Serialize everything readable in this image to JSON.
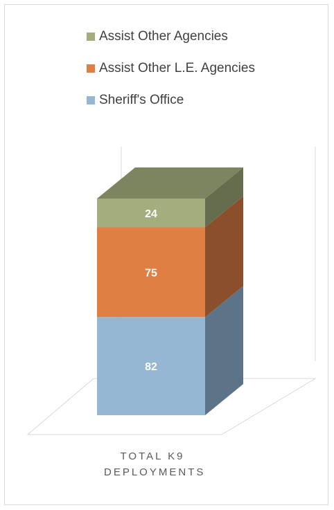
{
  "chart_data": {
    "type": "bar",
    "stacked": true,
    "three_d": true,
    "categories": [
      "Total K9 Deployments"
    ],
    "series": [
      {
        "name": "Sheriff's Office",
        "values": [
          82
        ],
        "color": "#95b7d4",
        "side_color": "#5d7387",
        "top_color": "#7b96ad"
      },
      {
        "name": "Assist Other L.E. Agencies",
        "values": [
          75
        ],
        "color": "#e07f44",
        "side_color": "#8c4f2b",
        "top_color": "#b86836"
      },
      {
        "name": "Assist Other Agencies",
        "values": [
          24
        ],
        "color": "#a3ad7d",
        "side_color": "#666c4e",
        "top_color": "#7d8460"
      }
    ],
    "legend_position": "top",
    "grid": false
  },
  "legend": {
    "items": [
      {
        "label": "Assist Other Agencies",
        "color": "#a3ad7d"
      },
      {
        "label": "Assist Other L.E. Agencies",
        "color": "#e07f44"
      },
      {
        "label": "Sheriff's Office",
        "color": "#95b7d4"
      }
    ]
  },
  "axis": {
    "category_label": "TOTAL K9 DEPLOYMENTS"
  }
}
